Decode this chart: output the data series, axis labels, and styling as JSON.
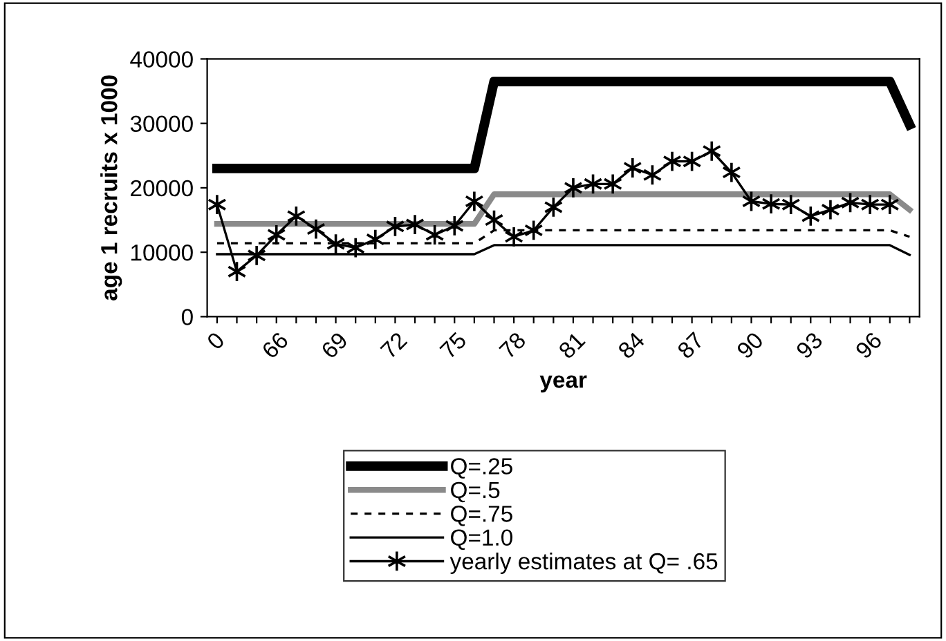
{
  "chart_data": {
    "type": "line",
    "xlabel": "year",
    "ylabel": "age 1 recruits x 1000",
    "categories": [
      "0",
      null,
      null,
      "66",
      null,
      null,
      "69",
      null,
      null,
      "72",
      null,
      null,
      "75",
      null,
      null,
      "78",
      null,
      null,
      "81",
      null,
      null,
      "84",
      null,
      null,
      "87",
      null,
      null,
      "90",
      null,
      null,
      "93",
      null,
      null,
      "96",
      null,
      null
    ],
    "ylim": [
      0,
      40000
    ],
    "yticks": [
      0,
      10000,
      20000,
      30000,
      40000
    ],
    "grid": false,
    "legend": "bottom",
    "series": [
      {
        "name": "Q=.25",
        "color": "#000000",
        "line_style": "solid",
        "marker": "none",
        "values": [
          23000,
          23000,
          23000,
          23000,
          23000,
          23000,
          23000,
          23000,
          23000,
          23000,
          23000,
          23000,
          23000,
          23000,
          36500,
          36500,
          36500,
          36500,
          36500,
          36500,
          36500,
          36500,
          36500,
          36500,
          36500,
          36500,
          36500,
          36500,
          36500,
          36500,
          36500,
          36500,
          36500,
          36500,
          36500,
          29800
        ]
      },
      {
        "name": "Q=.5",
        "color": "#8a8a8a",
        "line_style": "solid",
        "marker": "none",
        "values": [
          14400,
          14400,
          14400,
          14400,
          14400,
          14400,
          14400,
          14400,
          14400,
          14400,
          14400,
          14400,
          14400,
          14400,
          19000,
          19000,
          19000,
          19000,
          19000,
          19000,
          19000,
          19000,
          19000,
          19000,
          19000,
          19000,
          19000,
          19000,
          19000,
          19000,
          19000,
          19000,
          19000,
          19000,
          19000,
          16600
        ]
      },
      {
        "name": "Q=.75",
        "color": "#000000",
        "line_style": "dashed",
        "marker": "none",
        "values": [
          11400,
          11400,
          11400,
          11400,
          11400,
          11400,
          11400,
          11400,
          11400,
          11400,
          11400,
          11400,
          11400,
          11400,
          13400,
          13400,
          13400,
          13400,
          13400,
          13400,
          13400,
          13400,
          13400,
          13400,
          13400,
          13400,
          13400,
          13400,
          13400,
          13400,
          13400,
          13400,
          13400,
          13400,
          13400,
          12400
        ]
      },
      {
        "name": "Q=1.0",
        "color": "#000000",
        "line_style": "solid",
        "marker": "none",
        "values": [
          9700,
          9700,
          9700,
          9700,
          9700,
          9700,
          9700,
          9700,
          9700,
          9700,
          9700,
          9700,
          9700,
          9700,
          11100,
          11100,
          11100,
          11100,
          11100,
          11100,
          11100,
          11100,
          11100,
          11100,
          11100,
          11100,
          11100,
          11100,
          11100,
          11100,
          11100,
          11100,
          11100,
          11100,
          11100,
          9600
        ]
      },
      {
        "name": "yearly estimates at Q= .65",
        "color": "#000000",
        "line_style": "solid",
        "marker": "cross",
        "values": [
          17400,
          7000,
          9500,
          12700,
          15600,
          13600,
          11300,
          10700,
          12000,
          14000,
          14300,
          12700,
          14100,
          17900,
          15000,
          12400,
          13400,
          17000,
          20000,
          20600,
          20600,
          23100,
          22000,
          24100,
          24100,
          25700,
          22400,
          17900,
          17500,
          17400,
          15600,
          16600,
          17700,
          17400,
          17400,
          null
        ]
      }
    ]
  }
}
